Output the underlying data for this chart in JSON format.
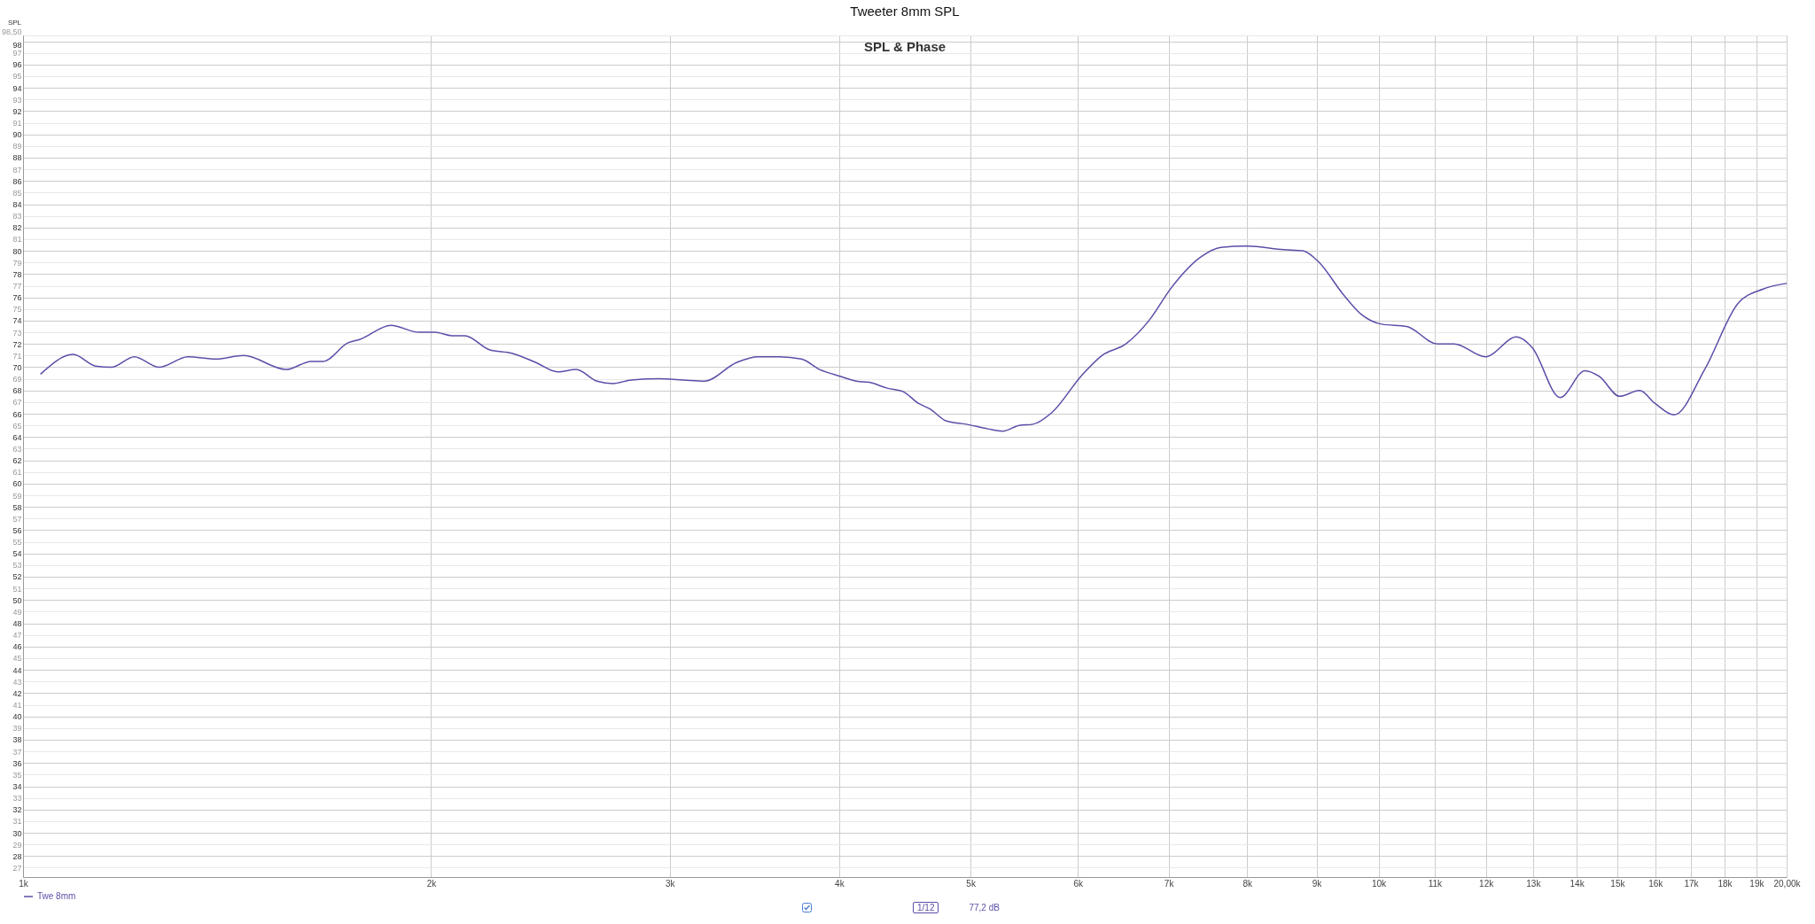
{
  "chart_data": {
    "type": "line",
    "title": "Tweeter 8mm SPL",
    "subtitle": "SPL & Phase",
    "ylabel": "SPL",
    "x": [
      1030,
      1089,
      1131,
      1162,
      1208,
      1260,
      1323,
      1388,
      1455,
      1564,
      1631,
      1665,
      1737,
      1773,
      1868,
      1959,
      2012,
      2074,
      2118,
      2208,
      2294,
      2390,
      2480,
      2559,
      2651,
      2724,
      2810,
      2948,
      3070,
      3180,
      3360,
      3484,
      3614,
      3752,
      3870,
      4012,
      4120,
      4210,
      4340,
      4460,
      4575,
      4670,
      4795,
      4965,
      5150,
      5280,
      5430,
      5560,
      5740,
      6040,
      6250,
      6510,
      6780,
      7030,
      7400,
      7650,
      8000,
      8510,
      8790,
      9040,
      9410,
      9720,
      10050,
      10490,
      11050,
      11370,
      11990,
      12640,
      12980,
      13610,
      14200,
      14550,
      15060,
      15580,
      15990,
      16520,
      17400,
      18420,
      19200,
      20000
    ],
    "series": [
      {
        "name": "Twe 8mm",
        "color": "#5a4fa8",
        "values": [
          69.4,
          71.1,
          70.1,
          70.0,
          70.9,
          70.0,
          70.9,
          70.7,
          71.0,
          69.8,
          70.5,
          70.5,
          72.1,
          72.4,
          73.6,
          73.0,
          73.0,
          72.7,
          72.7,
          71.5,
          71.2,
          70.4,
          69.6,
          69.8,
          68.8,
          68.6,
          68.9,
          69.0,
          68.9,
          68.8,
          70.4,
          70.9,
          70.9,
          70.7,
          69.8,
          69.2,
          68.8,
          68.7,
          68.2,
          67.9,
          66.9,
          66.4,
          65.4,
          65.1,
          64.7,
          64.5,
          65.0,
          65.1,
          66.1,
          69.3,
          71.0,
          72.0,
          74.1,
          76.8,
          79.5,
          80.3,
          80.4,
          80.1,
          80.0,
          79.0,
          76.3,
          74.5,
          73.7,
          73.5,
          72.0,
          72.0,
          70.9,
          72.6,
          71.7,
          67.4,
          69.7,
          69.2,
          67.5,
          68.0,
          66.9,
          65.9,
          69.8,
          75.5,
          76.7,
          77.2
        ]
      }
    ],
    "xlim": [
      1000,
      20000
    ],
    "xticks": [
      {
        "value": 1000,
        "label": "1k"
      },
      {
        "value": 2000,
        "label": "2k"
      },
      {
        "value": 3000,
        "label": "3k"
      },
      {
        "value": 4000,
        "label": "4k"
      },
      {
        "value": 5000,
        "label": "5k"
      },
      {
        "value": 6000,
        "label": "6k"
      },
      {
        "value": 7000,
        "label": "7k"
      },
      {
        "value": 8000,
        "label": "8k"
      },
      {
        "value": 9000,
        "label": "9k"
      },
      {
        "value": 10000,
        "label": "10k"
      },
      {
        "value": 11000,
        "label": "11k"
      },
      {
        "value": 12000,
        "label": "12k"
      },
      {
        "value": 13000,
        "label": "13k"
      },
      {
        "value": 14000,
        "label": "14k"
      },
      {
        "value": 15000,
        "label": "15k"
      },
      {
        "value": 16000,
        "label": "16k"
      },
      {
        "value": 17000,
        "label": "17k"
      },
      {
        "value": 18000,
        "label": "18k"
      },
      {
        "value": 19000,
        "label": "19k"
      },
      {
        "value": 20000,
        "label": "20,00k"
      }
    ],
    "ylim": [
      26.2,
      98.5
    ],
    "yticks": [
      27,
      28,
      29,
      30,
      31,
      32,
      33,
      34,
      35,
      36,
      37,
      38,
      39,
      40,
      41,
      42,
      43,
      44,
      45,
      46,
      47,
      48,
      49,
      50,
      51,
      52,
      53,
      54,
      55,
      56,
      57,
      58,
      59,
      60,
      61,
      62,
      63,
      64,
      65,
      66,
      67,
      68,
      69,
      70,
      71,
      72,
      73,
      74,
      75,
      76,
      77,
      78,
      79,
      80,
      81,
      82,
      83,
      84,
      85,
      86,
      87,
      88,
      89,
      90,
      91,
      92,
      93,
      94,
      95,
      96,
      97,
      98,
      {
        "value": 98.5,
        "label": "98,50"
      }
    ],
    "log": "x",
    "grid": true,
    "legend": "bottom",
    "annotations": [
      "1/12",
      "77,2 dB"
    ]
  }
}
